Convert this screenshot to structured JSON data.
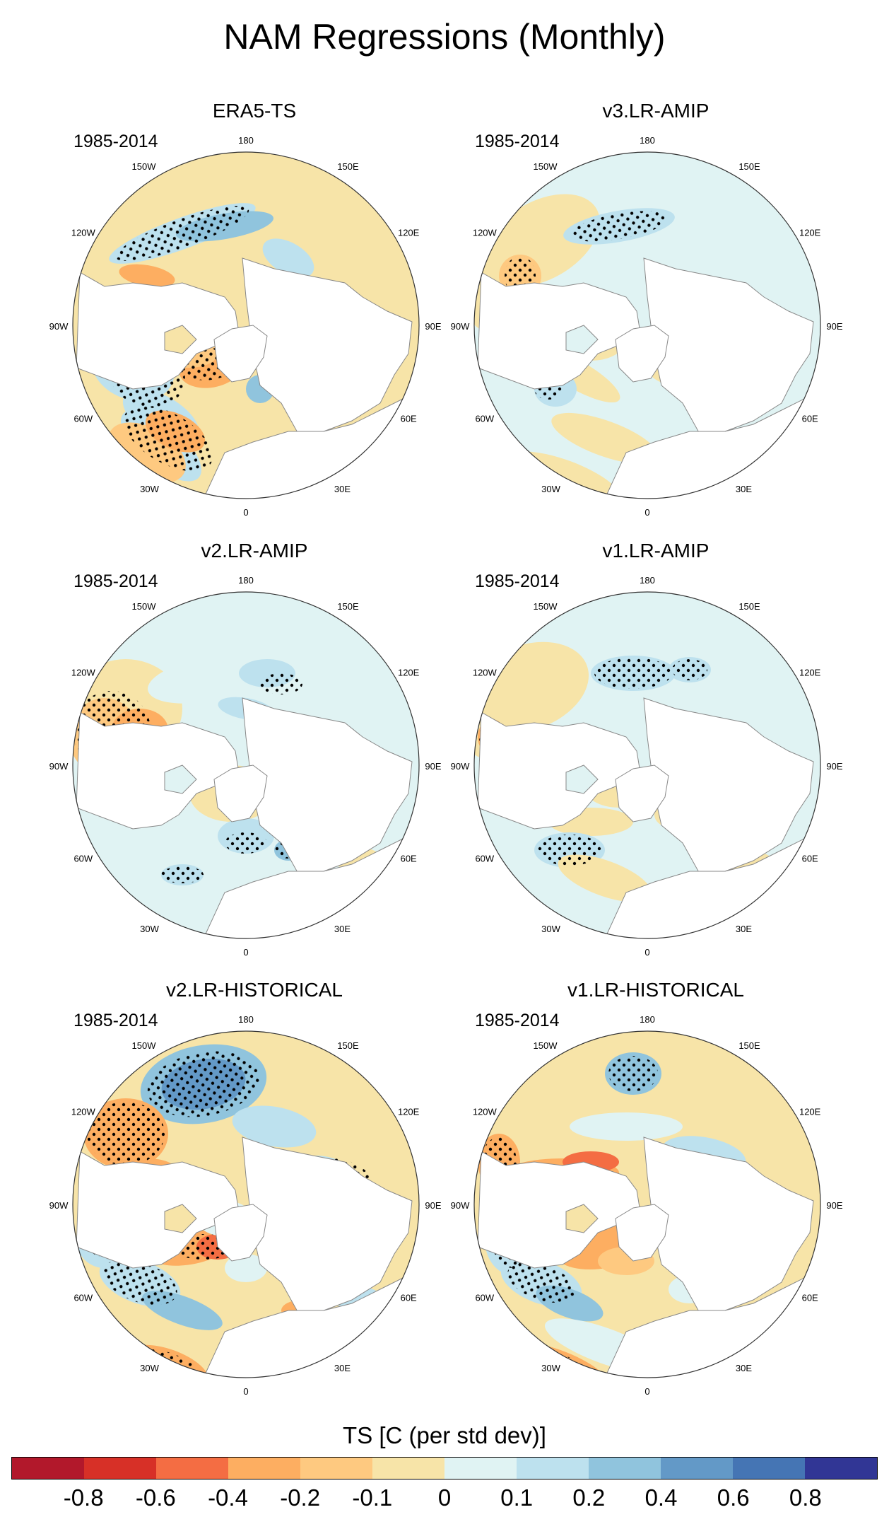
{
  "title": "NAM Regressions (Monthly)",
  "panels": [
    {
      "title": "ERA5-TS",
      "period": "1985-2014",
      "pattern": "era5"
    },
    {
      "title": "v3.LR-AMIP",
      "period": "1985-2014",
      "pattern": "v3amip"
    },
    {
      "title": "v2.LR-AMIP",
      "period": "1985-2014",
      "pattern": "v2amip"
    },
    {
      "title": "v1.LR-AMIP",
      "period": "1985-2014",
      "pattern": "v1amip"
    },
    {
      "title": "v2.LR-HISTORICAL",
      "period": "1985-2014",
      "pattern": "v2hist"
    },
    {
      "title": "v1.LR-HISTORICAL",
      "period": "1985-2014",
      "pattern": "v1hist"
    }
  ],
  "longitude_labels": [
    "180",
    "150E",
    "120E",
    "90E",
    "60E",
    "30E",
    "0",
    "30W",
    "60W",
    "90W",
    "120W",
    "150W"
  ],
  "colorbar": {
    "title": "TS [C (per std dev)]",
    "ticks": [
      "-0.8",
      "-0.6",
      "-0.4",
      "-0.2",
      "-0.1",
      "0",
      "0.1",
      "0.2",
      "0.4",
      "0.6",
      "0.8"
    ],
    "colors": [
      "#b2182b",
      "#d73027",
      "#f46d43",
      "#fdae61",
      "#fec980",
      "#f7e4a8",
      "#e0f3f3",
      "#bde1ee",
      "#90c4dd",
      "#6399c7",
      "#4575b4",
      "#313695"
    ]
  },
  "palette": {
    "land": "#ffffff",
    "pos": "#f7e4a8",
    "pos2": "#fec980",
    "pos3": "#fdae61",
    "pos4": "#f46d43",
    "neg": "#e0f3f3",
    "neg2": "#bde1ee",
    "neg3": "#90c4dd",
    "neg4": "#6399c7"
  }
}
